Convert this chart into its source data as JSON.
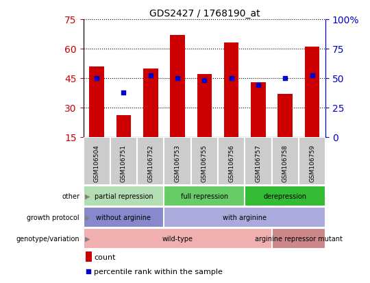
{
  "title": "GDS2427 / 1768190_at",
  "samples": [
    "GSM106504",
    "GSM106751",
    "GSM106752",
    "GSM106753",
    "GSM106755",
    "GSM106756",
    "GSM106757",
    "GSM106758",
    "GSM106759"
  ],
  "counts": [
    51,
    26,
    50,
    67,
    47,
    63,
    43,
    37,
    61
  ],
  "percentiles": [
    50,
    38,
    52,
    50,
    48,
    50,
    44,
    50,
    52
  ],
  "ylim_left": [
    15,
    75
  ],
  "ylim_right": [
    0,
    100
  ],
  "yticks_left": [
    15,
    30,
    45,
    60,
    75
  ],
  "yticks_right": [
    0,
    25,
    50,
    75,
    100
  ],
  "bar_color": "#cc0000",
  "dot_color": "#0000cc",
  "grid_color": "#000000",
  "left_tick_color": "#cc0000",
  "right_tick_color": "#0000cc",
  "xticklabel_bg": "#cccccc",
  "other_groups": [
    {
      "label": "partial repression",
      "start": 0,
      "end": 3,
      "color": "#b3ddb3"
    },
    {
      "label": "full repression",
      "start": 3,
      "end": 6,
      "color": "#66cc66"
    },
    {
      "label": "derepression",
      "start": 6,
      "end": 9,
      "color": "#33bb33"
    }
  ],
  "growth_groups": [
    {
      "label": "without arginine",
      "start": 0,
      "end": 3,
      "color": "#8888cc"
    },
    {
      "label": "with arginine",
      "start": 3,
      "end": 9,
      "color": "#aaaadd"
    }
  ],
  "genotype_groups": [
    {
      "label": "wild-type",
      "start": 0,
      "end": 7,
      "color": "#f0b0b0"
    },
    {
      "label": "arginine repressor mutant",
      "start": 7,
      "end": 9,
      "color": "#cc8888"
    }
  ],
  "row_labels": [
    "other",
    "growth protocol",
    "genotype/variation"
  ],
  "legend_count_label": "count",
  "legend_pct_label": "percentile rank within the sample"
}
